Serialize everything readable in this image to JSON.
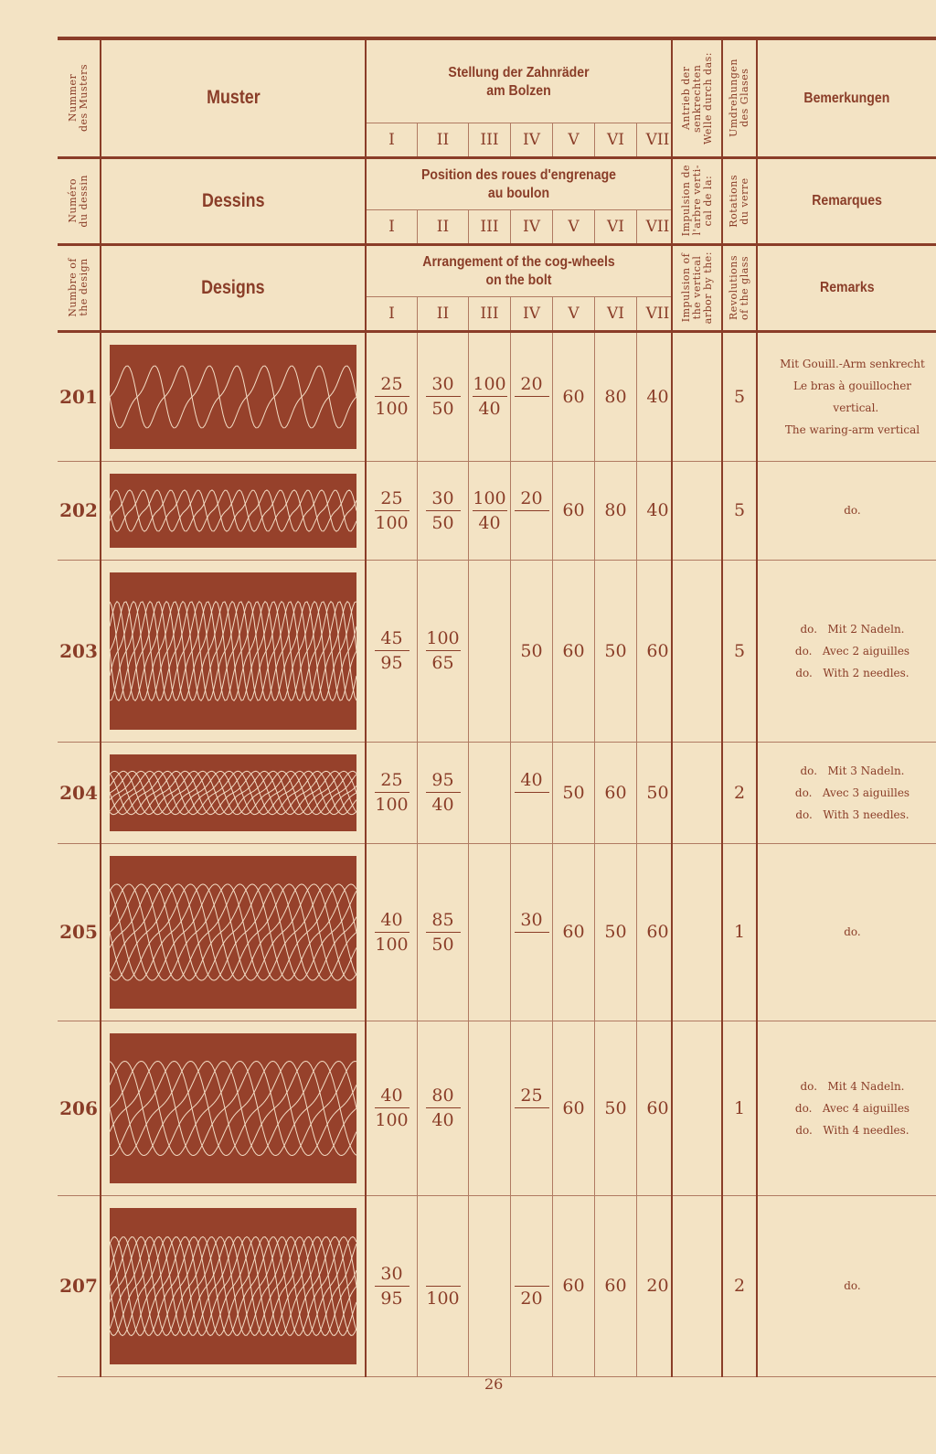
{
  "colors": {
    "ink": "#8a3d28",
    "paper": "#f3e3c4",
    "pattern_bg": "#96412b",
    "pattern_line": "#f3dcc4"
  },
  "header": {
    "german": {
      "number": "Nummer\ndes Musters",
      "design": "Muster",
      "gears_title_1": "Stellung der Zahnräder",
      "gears_title_2": "am Bolzen",
      "drive": "Antrieb der\nsenkrechten\nWelle durch das:",
      "revolutions": "Umdrehungen\ndes Glases",
      "remarks": "Bemerkungen"
    },
    "french": {
      "number": "Numéro\ndu dessin",
      "design": "Dessins",
      "gears_title_1": "Position des roues d'engrenage",
      "gears_title_2": "au boulon",
      "drive": "Impulsion de\nl'arbre verti-\ncal de la:",
      "revolutions": "Rotations\ndu verre",
      "remarks": "Remarques"
    },
    "english": {
      "number": "Numbre of\nthe design",
      "design": "Designs",
      "gears_title_1": "Arrangement of the cog-wheels",
      "gears_title_2": "on the bolt",
      "drive": "Impulsion of\nthe vertical\narbor by the:",
      "revolutions": "Revolutions\nof the glass",
      "remarks": "Remarks"
    },
    "gear_columns": [
      "I",
      "II",
      "III",
      "IV",
      "V",
      "VI",
      "VII"
    ]
  },
  "rows": [
    {
      "number": "201",
      "gears": [
        {
          "num": "25",
          "den": "100"
        },
        {
          "num": "30",
          "den": "50"
        },
        {
          "num": "100",
          "den": "40"
        },
        {
          "num": "20",
          "den": ""
        },
        {
          "val": "60"
        },
        {
          "val": "80"
        },
        {
          "val": "40"
        }
      ],
      "drive": "",
      "revolutions": "5",
      "remarks": [
        "Mit Gouill.-Arm senkrecht",
        "Le bras à gouillocher",
        "  vertical.",
        "The waring-arm vertical"
      ]
    },
    {
      "number": "202",
      "gears": [
        {
          "num": "25",
          "den": "100"
        },
        {
          "num": "30",
          "den": "50"
        },
        {
          "num": "100",
          "den": "40"
        },
        {
          "num": "20",
          "den": ""
        },
        {
          "val": "60"
        },
        {
          "val": "80"
        },
        {
          "val": "40"
        }
      ],
      "drive": "",
      "revolutions": "5",
      "remarks": [
        "do."
      ]
    },
    {
      "number": "203",
      "gears": [
        {
          "num": "45",
          "den": "95"
        },
        {
          "num": "100",
          "den": "65"
        },
        {
          "val": ""
        },
        {
          "val": "50"
        },
        {
          "val": "60"
        },
        {
          "val": "50"
        },
        {
          "val": "60"
        }
      ],
      "drive": "",
      "revolutions": "5",
      "remarks": [
        "do.   Mit 2 Nadeln.",
        "do.   Avec 2 aiguilles",
        "do.   With 2 needles."
      ]
    },
    {
      "number": "204",
      "gears": [
        {
          "num": "25",
          "den": "100"
        },
        {
          "num": "95",
          "den": "40"
        },
        {
          "val": ""
        },
        {
          "num": "40",
          "den": ""
        },
        {
          "val": "50"
        },
        {
          "val": "60"
        },
        {
          "val": "50"
        }
      ],
      "drive": "",
      "revolutions": "2",
      "remarks": [
        "do.   Mit 3 Nadeln.",
        "do.   Avec 3 aiguilles",
        "do.   With 3 needles."
      ]
    },
    {
      "number": "205",
      "gears": [
        {
          "num": "40",
          "den": "100"
        },
        {
          "num": "85",
          "den": "50"
        },
        {
          "val": ""
        },
        {
          "num": "30",
          "den": ""
        },
        {
          "val": "60"
        },
        {
          "val": "50"
        },
        {
          "val": "60"
        }
      ],
      "drive": "",
      "revolutions": "1",
      "remarks": [
        "do."
      ]
    },
    {
      "number": "206",
      "gears": [
        {
          "num": "40",
          "den": "100"
        },
        {
          "num": "80",
          "den": "40"
        },
        {
          "val": ""
        },
        {
          "num": "25",
          "den": ""
        },
        {
          "val": "60"
        },
        {
          "val": "50"
        },
        {
          "val": "60"
        }
      ],
      "drive": "",
      "revolutions": "1",
      "remarks": [
        "do.   Mit 4 Nadeln.",
        "do.   Avec 4 aiguilles",
        "do.   With 4 needles."
      ]
    },
    {
      "number": "207",
      "gears": [
        {
          "num": "30",
          "den": "95"
        },
        {
          "num": "",
          "den": "100"
        },
        {
          "val": ""
        },
        {
          "num": "",
          "den": "20"
        },
        {
          "val": "60"
        },
        {
          "val": "60"
        },
        {
          "val": "20"
        }
      ],
      "drive": "",
      "revolutions": "2",
      "remarks": [
        "do."
      ]
    }
  ],
  "page_number": "26"
}
